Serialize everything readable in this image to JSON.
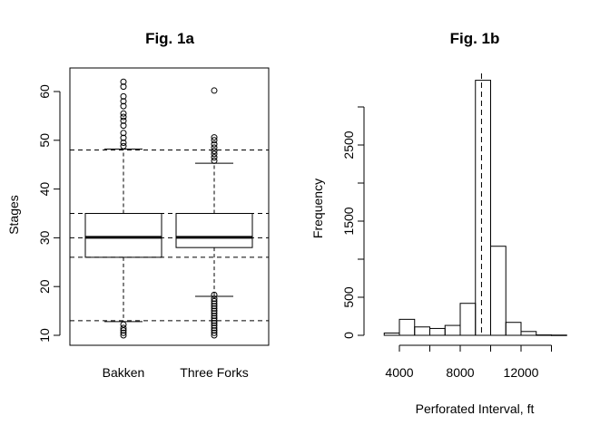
{
  "chart_data": [
    {
      "type": "box",
      "title": "Fig. 1a",
      "ylabel": "Stages",
      "xlabel": "",
      "ylim": [
        8,
        65
      ],
      "yticks": [
        10,
        20,
        30,
        40,
        50,
        60
      ],
      "categories": [
        "Bakken",
        "Three Forks"
      ],
      "boxes": [
        {
          "name": "Bakken",
          "whisker_low": 12.8,
          "q1": 26,
          "median": 30.1,
          "q3": 35,
          "whisker_high": 48.2,
          "outliers": [
            10,
            10.5,
            11,
            11.5,
            12.2,
            48.8,
            49.5,
            50.5,
            51.5,
            53,
            54,
            54.8,
            55.5,
            57,
            58,
            59,
            61,
            62
          ]
        },
        {
          "name": "Three Forks",
          "whisker_low": 18,
          "q1": 28,
          "median": 30.1,
          "q3": 35,
          "whisker_high": 45.3,
          "outliers": [
            10,
            10.5,
            11,
            11.5,
            12,
            12.5,
            13,
            13.5,
            14,
            14.5,
            15,
            15.5,
            16,
            16.5,
            17,
            17.5,
            18.3,
            45.8,
            46.5,
            47.2,
            47.8,
            48.5,
            49.2,
            50,
            50.6,
            60.2
          ]
        }
      ],
      "reference_lines": [
        13,
        26,
        30,
        35,
        48
      ],
      "grid": false
    },
    {
      "type": "histogram",
      "title": "Fig. 1b",
      "xlabel": "Perforated Interval, ft",
      "ylabel": "Frequency",
      "xticks": [
        4000,
        8000,
        12000
      ],
      "yticks": [
        0,
        500,
        1500,
        2500
      ],
      "xlim": [
        3000,
        15000
      ],
      "ylim": [
        0,
        3300
      ],
      "bins": [
        {
          "x0": 3000,
          "x1": 4000,
          "count": 30
        },
        {
          "x0": 4000,
          "x1": 5000,
          "count": 210
        },
        {
          "x0": 5000,
          "x1": 6000,
          "count": 110
        },
        {
          "x0": 6000,
          "x1": 7000,
          "count": 90
        },
        {
          "x0": 7000,
          "x1": 8000,
          "count": 130
        },
        {
          "x0": 8000,
          "x1": 9000,
          "count": 420
        },
        {
          "x0": 9000,
          "x1": 10000,
          "count": 3350
        },
        {
          "x0": 10000,
          "x1": 11000,
          "count": 1170
        },
        {
          "x0": 11000,
          "x1": 12000,
          "count": 170
        },
        {
          "x0": 12000,
          "x1": 13000,
          "count": 50
        },
        {
          "x0": 13000,
          "x1": 14000,
          "count": 5
        },
        {
          "x0": 14000,
          "x1": 15000,
          "count": 3
        }
      ],
      "reference_line_x": 9400,
      "grid": false
    }
  ]
}
